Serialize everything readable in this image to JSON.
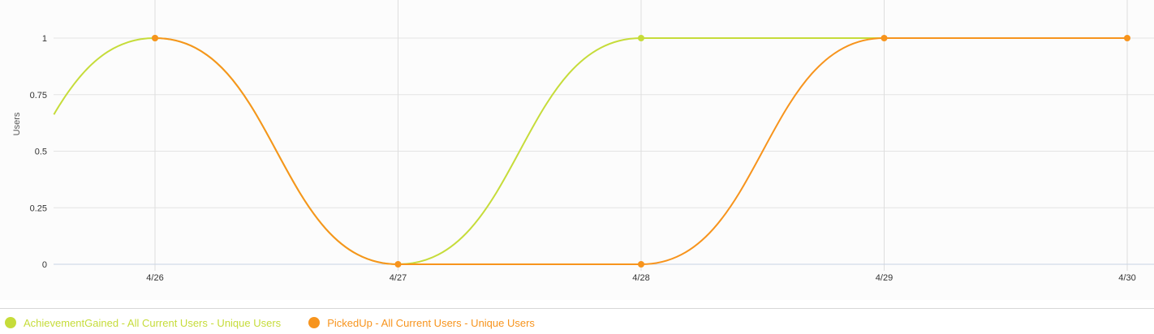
{
  "chart_data": {
    "type": "line",
    "title": "",
    "xlabel": "",
    "ylabel": "Users",
    "categories": [
      "4/26",
      "4/27",
      "4/28",
      "4/29",
      "4/30"
    ],
    "ylim": [
      0,
      1
    ],
    "yticks": [
      "0",
      "0.25",
      "0.5",
      "0.75",
      "1"
    ],
    "ytick_values": [
      0,
      0.25,
      0.5,
      0.75,
      1
    ],
    "grid": true,
    "legend_position": "bottom-left",
    "series": [
      {
        "name": "AchievementGained - All Current Users - Unique Users",
        "values": [
          1,
          0,
          1,
          1,
          1
        ],
        "color": "#c6dc3a",
        "marked_points": [
          0,
          2
        ]
      },
      {
        "name": "PickedUp - All Current Users - Unique Users",
        "values": [
          1,
          0,
          0,
          1,
          1
        ],
        "color": "#f7941d",
        "marked_points": [
          0,
          1,
          2,
          3,
          4
        ]
      }
    ]
  }
}
